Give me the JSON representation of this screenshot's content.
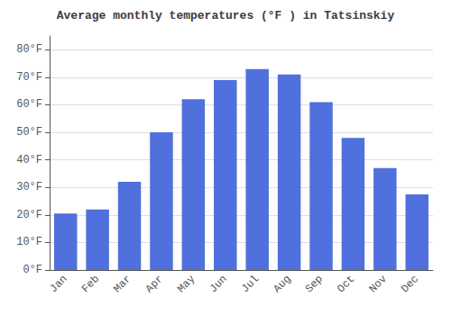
{
  "chart_data": {
    "type": "bar",
    "title": "Average monthly temperatures (°F ) in Tatsinskiy",
    "categories": [
      "Jan",
      "Feb",
      "Mar",
      "Apr",
      "May",
      "Jun",
      "Jul",
      "Aug",
      "Sep",
      "Oct",
      "Nov",
      "Dec"
    ],
    "values": [
      20.5,
      22,
      32,
      50,
      62,
      69,
      73,
      71,
      61,
      48,
      37,
      27.5
    ],
    "ylim": [
      0,
      85
    ],
    "yticks": [
      {
        "value": 0,
        "label": "0°F"
      },
      {
        "value": 10,
        "label": "10°F"
      },
      {
        "value": 20,
        "label": "20°F"
      },
      {
        "value": 30,
        "label": "30°F"
      },
      {
        "value": 40,
        "label": "40°F"
      },
      {
        "value": 50,
        "label": "50°F"
      },
      {
        "value": 60,
        "label": "60°F"
      },
      {
        "value": 70,
        "label": "70°F"
      },
      {
        "value": 80,
        "label": "80°F"
      }
    ],
    "grid": true
  }
}
